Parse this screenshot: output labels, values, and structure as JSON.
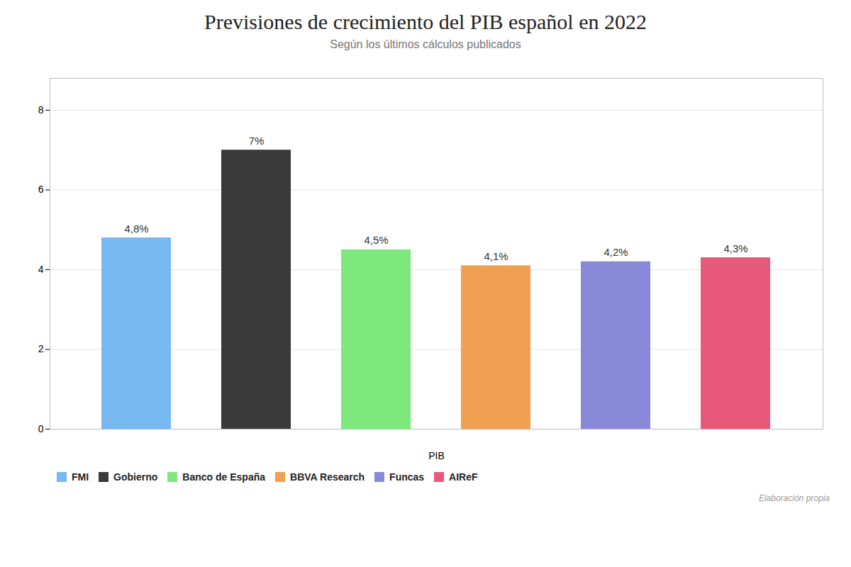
{
  "chart_data": {
    "type": "bar",
    "title": "Previsiones de crecimiento del PIB español en 2022",
    "subtitle": "Según los últimos cálculos publicados",
    "xlabel": "PIB",
    "categories": [
      "FMI",
      "Gobierno",
      "Banco de España",
      "BBVA Research",
      "Funcas",
      "AIReF"
    ],
    "values": [
      4.8,
      7.0,
      4.5,
      4.1,
      4.2,
      4.3
    ],
    "value_labels": [
      "4,8%",
      "7%",
      "4,5%",
      "4,1%",
      "4,2%",
      "4,3%"
    ],
    "colors": [
      "#78b8f0",
      "#3a3a3a",
      "#7de87d",
      "#f0a050",
      "#8888d8",
      "#e85878"
    ],
    "ylim": [
      0,
      8.8
    ],
    "yticks": [
      0,
      2,
      4,
      6,
      8
    ],
    "grid": true,
    "data_labels": true,
    "tick_labels": "y",
    "legend": "bottom",
    "annotations": [
      "Elaboración propia"
    ]
  }
}
